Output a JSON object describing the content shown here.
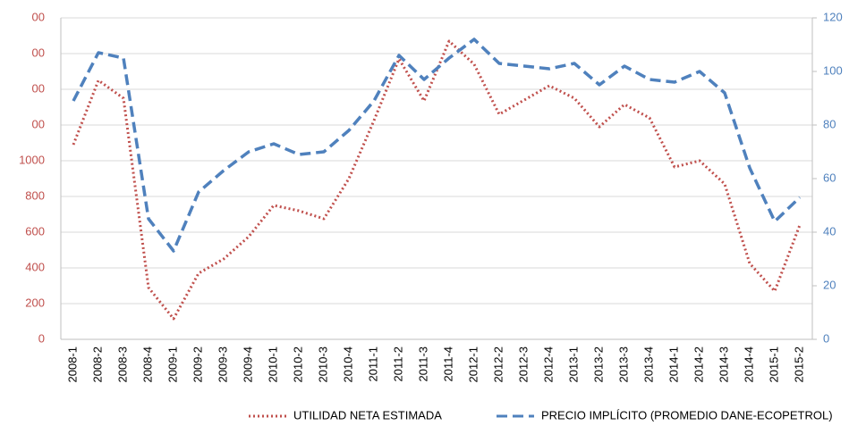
{
  "chart_data": {
    "type": "line",
    "categories": [
      "2008-1",
      "2008-2",
      "2008-3",
      "2008-4",
      "2009-1",
      "2009-2",
      "2009-3",
      "2009-4",
      "2010-1",
      "2010-2",
      "2010-3",
      "2010-4",
      "2011-1",
      "2011-2",
      "2011-3",
      "2011-4",
      "2012-1",
      "2012-2",
      "2012-3",
      "2012-4",
      "2013-1",
      "2013-2",
      "2013-3",
      "2013-4",
      "2014-1",
      "2014-2",
      "2014-3",
      "2014-4",
      "2015-1",
      "2015-2"
    ],
    "series": [
      {
        "name": "UTILIDAD NETA ESTIMADA",
        "color": "#c0504d",
        "style": "dotted",
        "values": [
          1090,
          1450,
          1350,
          290,
          115,
          370,
          450,
          575,
          750,
          720,
          675,
          900,
          1225,
          1570,
          1335,
          1670,
          1540,
          1260,
          1340,
          1420,
          1350,
          1190,
          1315,
          1240,
          965,
          1000,
          870,
          425,
          270,
          640
        ]
      },
      {
        "name": "PRECIO IMPLÍCITO (PROMEDIO DANE-ECOPETROL)",
        "color": "#4f81bd",
        "style": "dashed",
        "axis": "y2",
        "values": [
          89,
          107,
          105,
          45,
          33,
          55,
          63,
          70,
          73,
          69,
          70,
          78,
          89,
          106,
          97,
          105,
          112,
          103,
          102,
          101,
          103,
          95,
          102,
          97,
          96,
          100,
          92,
          64,
          44,
          53
        ]
      }
    ],
    "ylim": [
      0,
      1800
    ],
    "yticks": [
      0,
      200,
      400,
      600,
      800,
      1000,
      {
        "value": 1200,
        "label": "00"
      },
      {
        "value": 1400,
        "label": "00"
      },
      {
        "value": 1600,
        "label": "00"
      },
      {
        "value": 1800,
        "label": "00"
      }
    ],
    "y2lim": [
      0,
      120
    ],
    "y2ticks": [
      0,
      20,
      40,
      60,
      80,
      100,
      120
    ],
    "grid": true,
    "legend": "bottom"
  }
}
